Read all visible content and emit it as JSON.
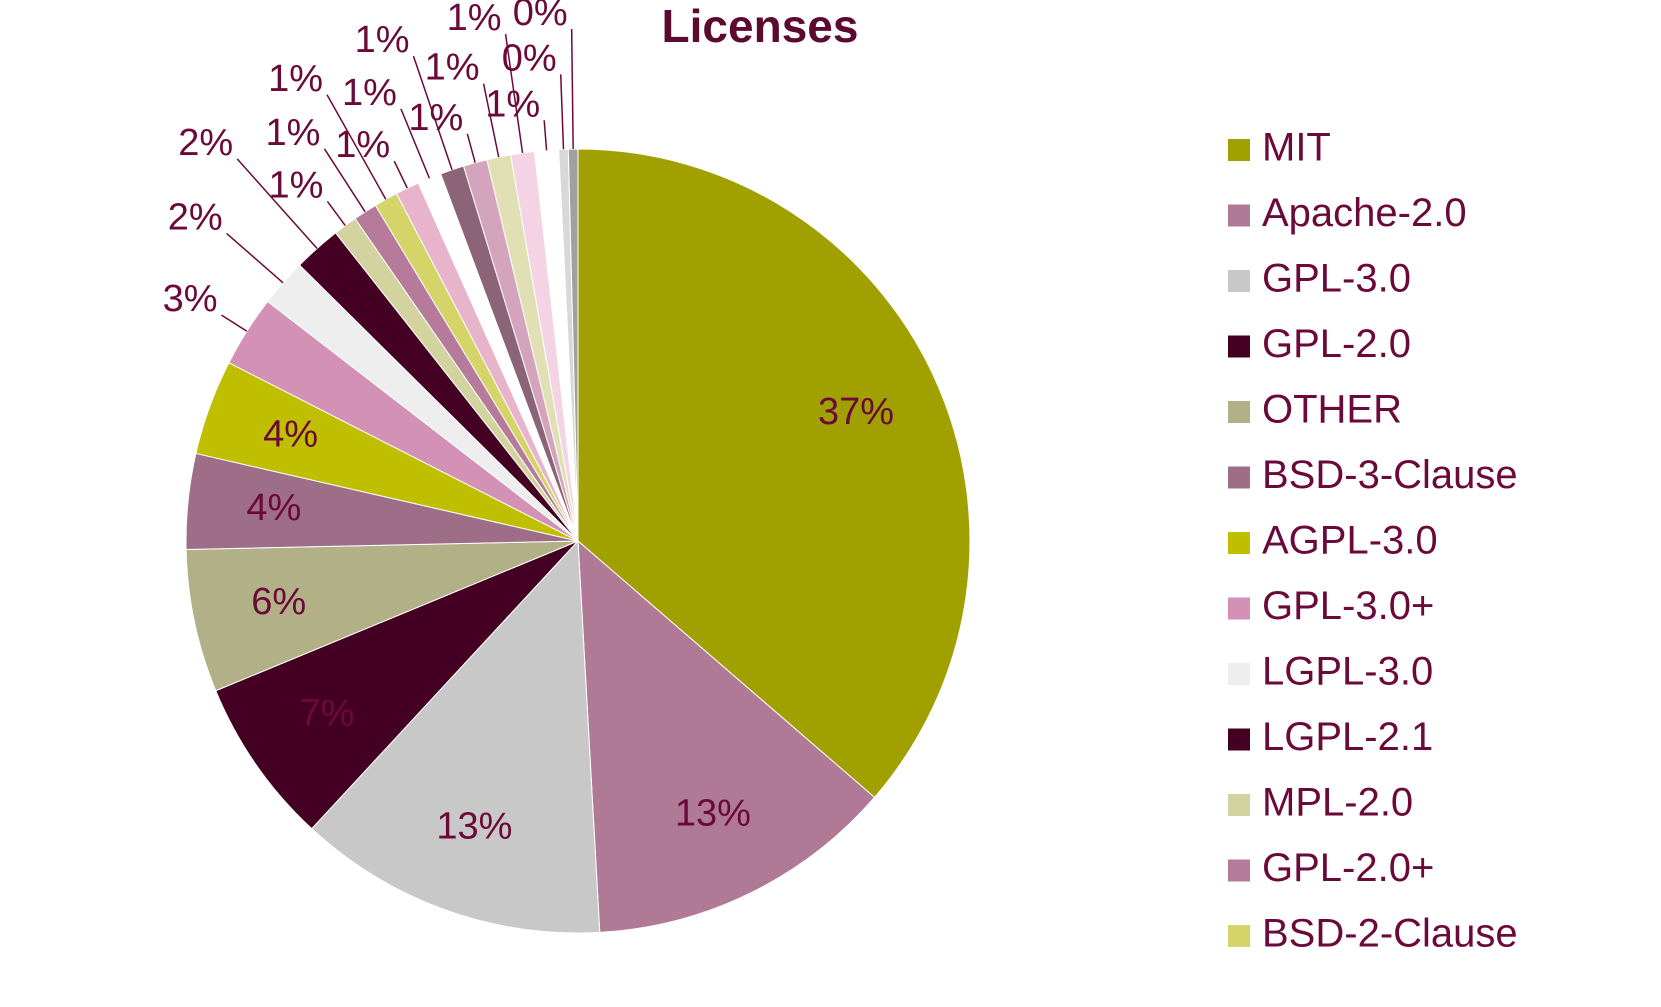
{
  "chart_data": {
    "type": "pie",
    "title": "Licenses",
    "categories": [
      "MIT",
      "Apache-2.0",
      "GPL-3.0",
      "GPL-2.0",
      "OTHER",
      "BSD-3-Clause",
      "AGPL-3.0",
      "GPL-3.0+",
      "LGPL-3.0",
      "LGPL-2.1",
      "MPL-2.0",
      "GPL-2.0+",
      "BSD-2-Clause",
      null,
      null,
      null,
      null,
      null,
      null,
      null,
      null,
      null
    ],
    "values": [
      37,
      13,
      13,
      7,
      6,
      4,
      4,
      3,
      2,
      2,
      1,
      1,
      1,
      1,
      1,
      1,
      1,
      1,
      1,
      1,
      0.4,
      0.4
    ],
    "value_labels": [
      "37%",
      "13%",
      "13%",
      "7%",
      "6%",
      "4%",
      "4%",
      "3%",
      "2%",
      "2%",
      "1%",
      "1%",
      "1%",
      "1%",
      "1%",
      "1%",
      "1%",
      "1%",
      "1%",
      "1%",
      "0%",
      "0%"
    ],
    "colors": [
      "#a0a000",
      "#b07a96",
      "#c8c8c8",
      "#440022",
      "#b1b087",
      "#9e6e88",
      "#bfbf00",
      "#d291b5",
      "#eeeeee",
      "#440022",
      "#d3d3a0",
      "#b67a9a",
      "#d4d468",
      "#e8b4cc",
      "#ffffff",
      "#8c6478",
      "#d4a4bc",
      "#e0e0b4",
      "#f4d4e4",
      "#ffffff",
      "#d8d8d8",
      "#a0a0a0"
    ],
    "legend": "right"
  }
}
